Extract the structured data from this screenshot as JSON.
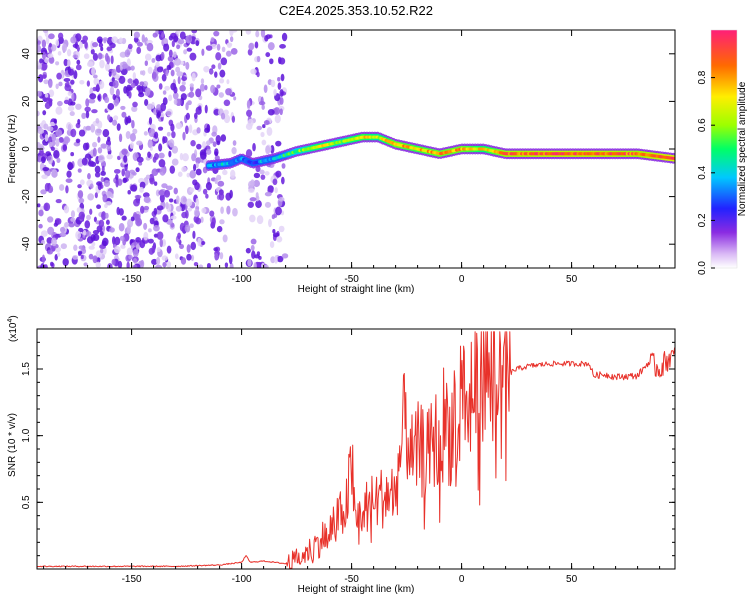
{
  "figure_title": "C2E4.2025.353.10.52.R22",
  "colors": {
    "snr_line": "#e8312a",
    "speckle_light": "#c9b2f0",
    "speckle_dark": "#6a1fe0"
  },
  "chart_data": [
    {
      "type": "heatmap",
      "title": "C2E4.2025.353.10.52.R22",
      "xlabel": "Height of straight line (km)",
      "ylabel": "Frequency (Hz)",
      "xlim": [
        -193,
        97
      ],
      "ylim": [
        -50,
        50
      ],
      "x_ticks": [
        -150,
        -100,
        -50,
        0,
        50
      ],
      "y_ticks": [
        -40,
        -20,
        0,
        20,
        40
      ],
      "colorbar": {
        "label": "Normalized spectral amplitude",
        "range": [
          0.0,
          1.0
        ],
        "ticks": [
          "0.0",
          "0.2",
          "0.4",
          "0.6",
          "0.8"
        ],
        "colormap": "rainbow"
      },
      "noise_region_km": [
        -193,
        -80
      ],
      "noise_gap_km": [
        -103,
        -97
      ],
      "signal_ridge": {
        "x_km": [
          -115,
          -105,
          -100,
          -95,
          -85,
          -75,
          -65,
          -55,
          -45,
          -38,
          -30,
          -20,
          -10,
          0,
          10,
          20,
          40,
          60,
          80,
          97
        ],
        "freq_hz": [
          -7,
          -6,
          -4,
          -6,
          -4,
          -1,
          1,
          3,
          5,
          5,
          2,
          0,
          -2,
          0,
          0,
          -2,
          -2,
          -2,
          -2,
          -4
        ],
        "amplitude": [
          0.35,
          0.4,
          0.35,
          0.3,
          0.4,
          0.55,
          0.7,
          0.6,
          0.75,
          0.65,
          0.8,
          0.75,
          0.8,
          0.8,
          0.7,
          0.85,
          0.9,
          0.9,
          0.85,
          0.95
        ]
      }
    },
    {
      "type": "line",
      "title": "",
      "xlabel": "Height of straight line (km)",
      "ylabel": "SNR (10 * v/v)",
      "y_multiplier": "(x10^4)",
      "y_multiplier_base": "(x10",
      "y_multiplier_exp": "4",
      "y_multiplier_close": ")",
      "xlim": [
        -193,
        97
      ],
      "ylim": [
        0,
        1.8
      ],
      "x_ticks": [
        -150,
        -100,
        -50,
        0,
        50
      ],
      "y_ticks": [
        0.5,
        1.0,
        1.5
      ],
      "y_tick_labels": [
        "0.5",
        "1.0",
        "1.5"
      ],
      "series": [
        {
          "name": "SNR",
          "x": [
            -193,
            -170,
            -150,
            -130,
            -110,
            -100,
            -98,
            -96,
            -90,
            -80,
            -72,
            -65,
            -60,
            -55,
            -52,
            -50,
            -48,
            -45,
            -40,
            -35,
            -30,
            -27,
            -25,
            -22,
            -20,
            -15,
            -12,
            -10,
            -8,
            -5,
            -3,
            -1,
            0,
            2,
            5,
            8,
            10,
            13,
            15,
            17,
            20,
            25,
            30,
            40,
            50,
            58,
            60,
            65,
            70,
            80,
            85,
            90,
            95,
            97
          ],
          "y": [
            0.02,
            0.02,
            0.02,
            0.02,
            0.03,
            0.05,
            0.1,
            0.05,
            0.06,
            0.04,
            0.1,
            0.2,
            0.3,
            0.4,
            0.5,
            0.8,
            0.35,
            0.45,
            0.5,
            0.55,
            0.6,
            0.95,
            1.25,
            0.75,
            0.9,
            0.85,
            1.0,
            0.8,
            1.15,
            1.0,
            1.25,
            1.0,
            1.65,
            1.1,
            1.45,
            1.3,
            1.6,
            1.4,
            1.7,
            1.35,
            1.45,
            1.5,
            1.52,
            1.54,
            1.54,
            1.54,
            1.45,
            1.46,
            1.44,
            1.45,
            1.55,
            1.5,
            1.6,
            1.58
          ]
        }
      ]
    }
  ]
}
